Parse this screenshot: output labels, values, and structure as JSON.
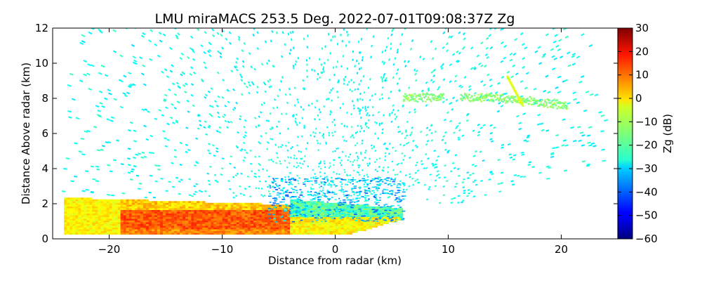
{
  "chart_data": {
    "type": "heatmap",
    "title": "LMU miraMACS 253.5 Deg. 2022-07-01T09:08:37Z  Zg",
    "xlabel": "Distance from radar (km)",
    "ylabel": "Distance Above radar  (km)",
    "xlim": [
      -25,
      25
    ],
    "ylim": [
      0,
      12
    ],
    "x_ticks": [
      -20,
      -10,
      0,
      10,
      20
    ],
    "y_ticks": [
      0,
      2,
      4,
      6,
      8,
      10,
      12
    ],
    "colorbar": {
      "label": "Zg (dB)",
      "range": [
        -60,
        30
      ],
      "ticks": [
        -60,
        -50,
        -40,
        -30,
        -20,
        -10,
        0,
        10,
        20,
        30
      ],
      "colormap": "jet"
    },
    "features": [
      {
        "name": "boundary-layer-echo",
        "x_range": [
          -24,
          6
        ],
        "height_range": [
          0.2,
          2.2
        ],
        "zg_range": [
          -10,
          15
        ]
      },
      {
        "name": "near-radar-weak-echo",
        "x_range": [
          -5,
          6
        ],
        "height_range": [
          1,
          3.5
        ],
        "zg_range": [
          -45,
          -25
        ]
      },
      {
        "name": "elevated-layer",
        "x_range": [
          6,
          20.5
        ],
        "height_range": [
          7.5,
          9.3
        ],
        "zg_range": [
          -20,
          -5
        ]
      },
      {
        "name": "noise-field",
        "x_range": [
          -24,
          24
        ],
        "height_range": [
          2,
          12
        ],
        "zg_range": [
          -30,
          -22
        ]
      }
    ]
  }
}
